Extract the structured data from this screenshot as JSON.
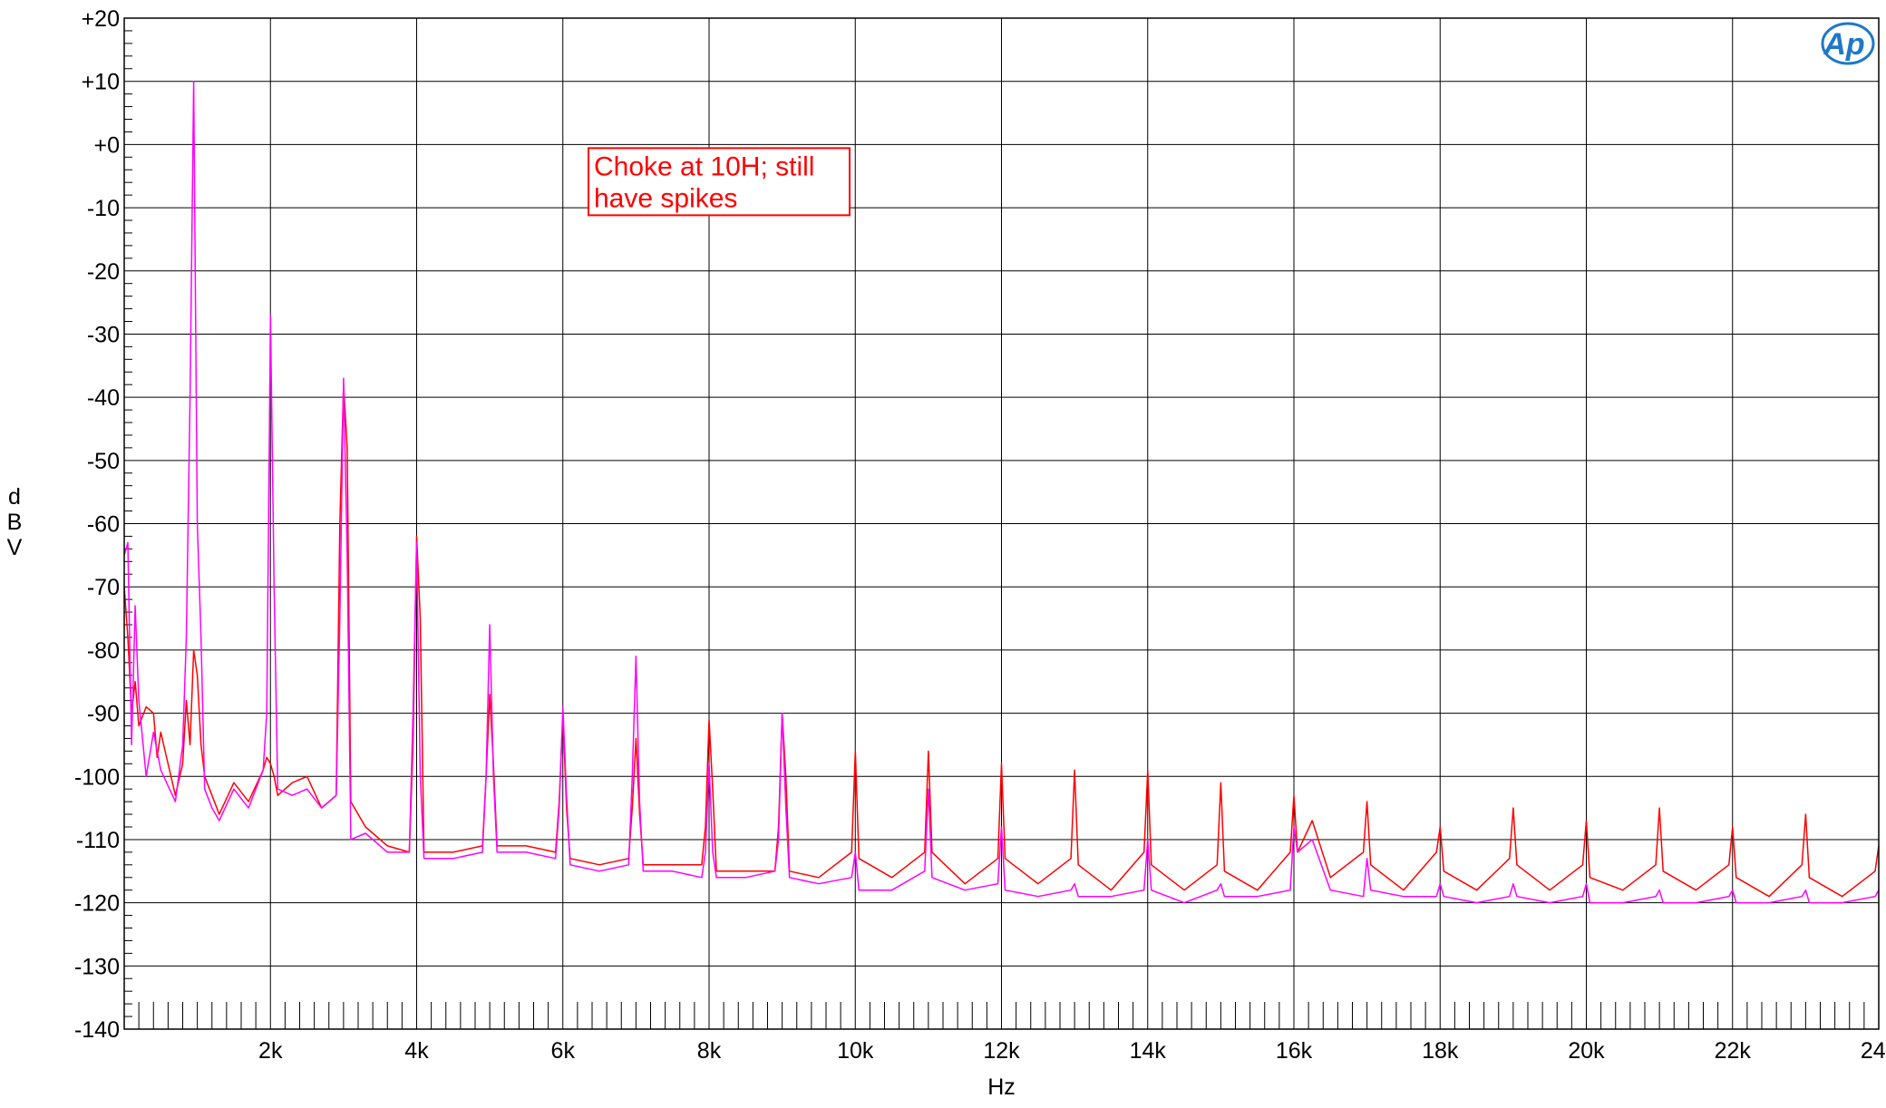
{
  "chart_data": {
    "type": "line",
    "title": "",
    "xlabel": "Hz",
    "ylabel": "dBV",
    "xlim": [
      0,
      24000
    ],
    "ylim": [
      -140,
      20
    ],
    "grid": true,
    "x_tick_values": [
      2000,
      4000,
      6000,
      8000,
      10000,
      12000,
      14000,
      16000,
      18000,
      20000,
      22000,
      24000
    ],
    "x_tick_labels": [
      "2k",
      "4k",
      "6k",
      "8k",
      "10k",
      "12k",
      "14k",
      "16k",
      "18k",
      "20k",
      "22k",
      "24k"
    ],
    "y_tick_values": [
      20,
      10,
      0,
      -10,
      -20,
      -30,
      -40,
      -50,
      -60,
      -70,
      -80,
      -90,
      -100,
      -110,
      -120,
      -130,
      -140
    ],
    "y_tick_labels": [
      "+20",
      "+10",
      "+0",
      "-10",
      "-20",
      "-30",
      "-40",
      "-50",
      "-60",
      "-70",
      "-80",
      "-90",
      "-100",
      "-110",
      "-120",
      "-130",
      "-140"
    ],
    "annotation": {
      "lines": [
        "Choke at 10H; still",
        "have spikes"
      ],
      "x": 6400,
      "y": 0,
      "color": "#ff0000"
    },
    "series": [
      {
        "color": "#ff0000",
        "x": [
          0,
          50,
          100,
          150,
          200,
          300,
          400,
          450,
          500,
          700,
          800,
          850,
          900,
          950,
          1000,
          1050,
          1100,
          1200,
          1300,
          1500,
          1700,
          1900,
          1950,
          2000,
          2050,
          2100,
          2300,
          2500,
          2700,
          2900,
          2950,
          3000,
          3050,
          3100,
          3300,
          3600,
          3900,
          3950,
          4000,
          4050,
          4100,
          4500,
          4900,
          4950,
          5000,
          5050,
          5100,
          5500,
          5900,
          5950,
          6000,
          6050,
          6100,
          6500,
          6900,
          6950,
          7000,
          7050,
          7100,
          7500,
          7900,
          7950,
          8000,
          8050,
          8100,
          8500,
          8900,
          8950,
          9000,
          9050,
          9100,
          9500,
          9950,
          10000,
          10050,
          10500,
          10950,
          11000,
          11050,
          11500,
          11950,
          12000,
          12050,
          12500,
          12950,
          13000,
          13050,
          13500,
          13950,
          14000,
          14050,
          14500,
          14950,
          15000,
          15050,
          15500,
          15950,
          16000,
          16050,
          16250,
          16500,
          16950,
          17000,
          17050,
          17500,
          17950,
          18000,
          18050,
          18500,
          18950,
          19000,
          19050,
          19500,
          19950,
          20000,
          20050,
          20500,
          20950,
          21000,
          21050,
          21500,
          21950,
          22000,
          22050,
          22500,
          22950,
          23000,
          23050,
          23500,
          23950,
          24000
        ],
        "y": [
          -70,
          -78,
          -90,
          -85,
          -92,
          -89,
          -90,
          -97,
          -93,
          -103,
          -98,
          -88,
          -95,
          -80,
          -84,
          -95,
          -100,
          -103,
          -106,
          -101,
          -104,
          -99,
          -97,
          -98,
          -100,
          -103,
          -101,
          -100,
          -105,
          -103,
          -60,
          -38,
          -48,
          -104,
          -108,
          -111,
          -112,
          -95,
          -62,
          -75,
          -112,
          -112,
          -111,
          -100,
          -87,
          -98,
          -111,
          -111,
          -112,
          -104,
          -90,
          -105,
          -113,
          -114,
          -113,
          -105,
          -94,
          -106,
          -114,
          -114,
          -114,
          -108,
          -91,
          -102,
          -115,
          -115,
          -115,
          -108,
          -90,
          -100,
          -115,
          -116,
          -112,
          -96,
          -113,
          -116,
          -112,
          -96,
          -112,
          -117,
          -113,
          -98,
          -113,
          -117,
          -113,
          -99,
          -114,
          -118,
          -112,
          -99,
          -114,
          -118,
          -114,
          -101,
          -115,
          -118,
          -112,
          -103,
          -112,
          -107,
          -116,
          -112,
          -104,
          -114,
          -118,
          -112,
          -108,
          -115,
          -118,
          -113,
          -105,
          -114,
          -118,
          -114,
          -107,
          -116,
          -118,
          -114,
          -105,
          -115,
          -118,
          -114,
          -108,
          -116,
          -119,
          -114,
          -106,
          -116,
          -119,
          -115,
          -111
        ]
      },
      {
        "color": "#ff00ff",
        "x": [
          0,
          50,
          100,
          150,
          200,
          300,
          400,
          450,
          500,
          700,
          800,
          850,
          900,
          950,
          1000,
          1050,
          1100,
          1200,
          1300,
          1500,
          1700,
          1900,
          1950,
          2000,
          2050,
          2100,
          2300,
          2500,
          2700,
          2900,
          2950,
          3000,
          3050,
          3100,
          3300,
          3600,
          3900,
          3950,
          4000,
          4050,
          4100,
          4500,
          4900,
          4950,
          5000,
          5050,
          5100,
          5500,
          5900,
          5950,
          6000,
          6050,
          6100,
          6500,
          6900,
          6950,
          7000,
          7050,
          7100,
          7500,
          7900,
          7950,
          8000,
          8050,
          8100,
          8500,
          8900,
          8950,
          9000,
          9050,
          9100,
          9500,
          9950,
          10000,
          10050,
          10500,
          10950,
          11000,
          11050,
          11500,
          11950,
          12000,
          12050,
          12500,
          12950,
          13000,
          13050,
          13500,
          13950,
          14000,
          14050,
          14500,
          14950,
          15000,
          15050,
          15500,
          15950,
          16000,
          16050,
          16250,
          16500,
          16950,
          17000,
          17050,
          17500,
          17950,
          18000,
          18050,
          18500,
          18950,
          19000,
          19050,
          19500,
          19950,
          20000,
          20050,
          20500,
          20950,
          21000,
          21050,
          21500,
          21950,
          22000,
          22050,
          22500,
          22950,
          23000,
          23050,
          23500,
          23950,
          24000
        ],
        "y": [
          -65,
          -63,
          -95,
          -73,
          -88,
          -100,
          -93,
          -96,
          -99,
          -104,
          -95,
          -78,
          -40,
          10,
          -60,
          -78,
          -102,
          -105,
          -107,
          -102,
          -105,
          -99,
          -90,
          -27,
          -70,
          -102,
          -103,
          -102,
          -105,
          -103,
          -75,
          -37,
          -65,
          -110,
          -109,
          -112,
          -112,
          -90,
          -63,
          -100,
          -113,
          -113,
          -112,
          -100,
          -76,
          -100,
          -112,
          -112,
          -113,
          -105,
          -89,
          -103,
          -114,
          -115,
          -114,
          -100,
          -81,
          -104,
          -115,
          -115,
          -116,
          -112,
          -98,
          -112,
          -116,
          -116,
          -115,
          -110,
          -90,
          -105,
          -116,
          -117,
          -116,
          -112,
          -118,
          -118,
          -115,
          -102,
          -116,
          -118,
          -117,
          -108,
          -118,
          -119,
          -118,
          -117,
          -119,
          -119,
          -118,
          -110,
          -118,
          -120,
          -118,
          -117,
          -119,
          -119,
          -118,
          -108,
          -112,
          -110,
          -118,
          -119,
          -113,
          -118,
          -119,
          -119,
          -117,
          -119,
          -120,
          -119,
          -117,
          -119,
          -120,
          -119,
          -117,
          -120,
          -120,
          -119,
          -118,
          -120,
          -120,
          -119,
          -118,
          -120,
          -120,
          -119,
          -118,
          -120,
          -120,
          -119,
          -118
        ]
      }
    ]
  },
  "logo": {
    "text": "Ap",
    "color": "#1f78c8"
  }
}
